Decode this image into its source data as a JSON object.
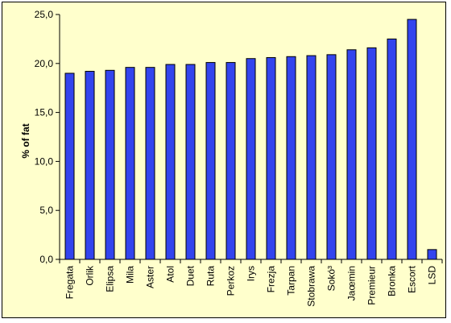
{
  "chart_data": {
    "type": "bar",
    "title": "",
    "xlabel": "",
    "ylabel": "% of fat",
    "ylim": [
      0,
      25
    ],
    "yticks": [
      0,
      5,
      10,
      15,
      20,
      25
    ],
    "ytick_labels": [
      "0,0",
      "5,0",
      "10,0",
      "15,0",
      "20,0",
      "25,0"
    ],
    "grid": false,
    "legend": "none",
    "categories": [
      "Fregata",
      "Orlik",
      "Elipsa",
      "Mila",
      "Aster",
      "Atol",
      "Duet",
      "Ruta",
      "Perkoz",
      "Irys",
      "Frezja",
      "Tarpan",
      "Stobrawa",
      "Sokó³",
      "Jaœmin",
      "Premieur",
      "Bronka",
      "Escort",
      "LSD"
    ],
    "values": [
      19.0,
      19.2,
      19.3,
      19.6,
      19.6,
      19.9,
      19.9,
      20.1,
      20.1,
      20.5,
      20.6,
      20.7,
      20.8,
      20.9,
      21.4,
      21.6,
      22.5,
      24.5,
      1.0
    ],
    "bar_color": "#3344ee",
    "background_color": "#ffffcc"
  }
}
